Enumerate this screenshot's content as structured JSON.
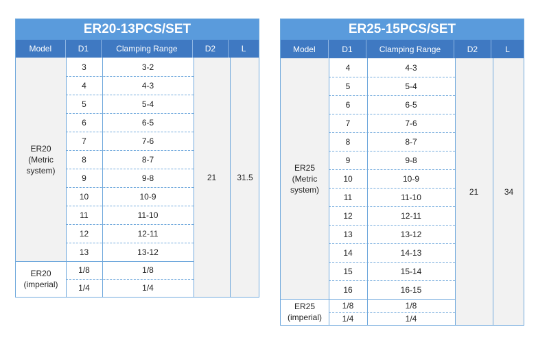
{
  "tables": [
    {
      "title": "ER20-13PCS/SET",
      "headers": [
        "Model",
        "D1",
        "Clamping Range",
        "D2",
        "L"
      ],
      "metric_model": [
        "ER20",
        "(Metric",
        "system)"
      ],
      "metric_rows": [
        {
          "d1": "3",
          "range": "3-2"
        },
        {
          "d1": "4",
          "range": "4-3"
        },
        {
          "d1": "5",
          "range": "5-4"
        },
        {
          "d1": "6",
          "range": "6-5"
        },
        {
          "d1": "7",
          "range": "7-6"
        },
        {
          "d1": "8",
          "range": "8-7"
        },
        {
          "d1": "9",
          "range": "9-8"
        },
        {
          "d1": "10",
          "range": "10-9"
        },
        {
          "d1": "11",
          "range": "11-10"
        },
        {
          "d1": "12",
          "range": "12-11"
        },
        {
          "d1": "13",
          "range": "13-12"
        }
      ],
      "imperial_model": [
        "ER20",
        "(imperial)"
      ],
      "imperial_rows": [
        {
          "d1": "1/8",
          "range": "1/8"
        },
        {
          "d1": "1/4",
          "range": "1/4"
        }
      ],
      "d2": "21",
      "l": "31.5"
    },
    {
      "title": "ER25-15PCS/SET",
      "headers": [
        "Model",
        "D1",
        "Clamping Range",
        "D2",
        "L"
      ],
      "metric_model": [
        "ER25",
        "(Metric",
        "system)"
      ],
      "metric_rows": [
        {
          "d1": "4",
          "range": "4-3"
        },
        {
          "d1": "5",
          "range": "5-4"
        },
        {
          "d1": "6",
          "range": "6-5"
        },
        {
          "d1": "7",
          "range": "7-6"
        },
        {
          "d1": "8",
          "range": "8-7"
        },
        {
          "d1": "9",
          "range": "9-8"
        },
        {
          "d1": "10",
          "range": "10-9"
        },
        {
          "d1": "11",
          "range": "11-10"
        },
        {
          "d1": "12",
          "range": "12-11"
        },
        {
          "d1": "13",
          "range": "13-12"
        },
        {
          "d1": "14",
          "range": "14-13"
        },
        {
          "d1": "15",
          "range": "15-14"
        },
        {
          "d1": "16",
          "range": "16-15"
        }
      ],
      "imperial_model": [
        "ER25",
        "(imperial)"
      ],
      "imperial_rows": [
        {
          "d1": "1/8",
          "range": "1/8"
        },
        {
          "d1": "1/4",
          "range": "1/4"
        }
      ],
      "d2": "21",
      "l": "34"
    }
  ]
}
